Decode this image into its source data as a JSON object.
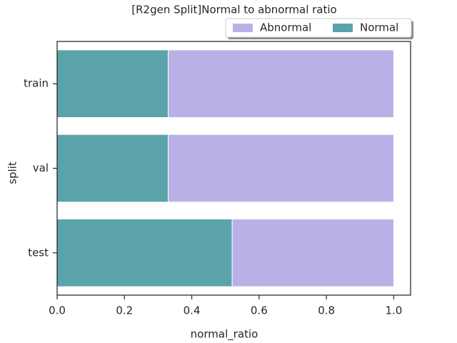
{
  "chart_data": {
    "type": "stacked_barh",
    "title": "[R2gen Split]Normal to abnormal ratio",
    "x_label": "normal_ratio",
    "y_label": "split",
    "categories": [
      "train",
      "val",
      "test"
    ],
    "series": [
      {
        "name": "Normal",
        "color": "#5ba3aa",
        "values": [
          0.33,
          0.33,
          0.52
        ]
      },
      {
        "name": "Abnormal",
        "color": "#b9b1e5",
        "values": [
          0.67,
          0.67,
          0.48
        ]
      }
    ],
    "legend_order": [
      "Abnormal",
      "Normal"
    ],
    "legend": "upper right",
    "xlim": [
      0,
      1.05
    ],
    "xticks": [
      {
        "value": 0,
        "label": "0.0"
      },
      0.2,
      0.4,
      0.6,
      0.8,
      {
        "value": 1,
        "label": "1.0"
      }
    ]
  }
}
